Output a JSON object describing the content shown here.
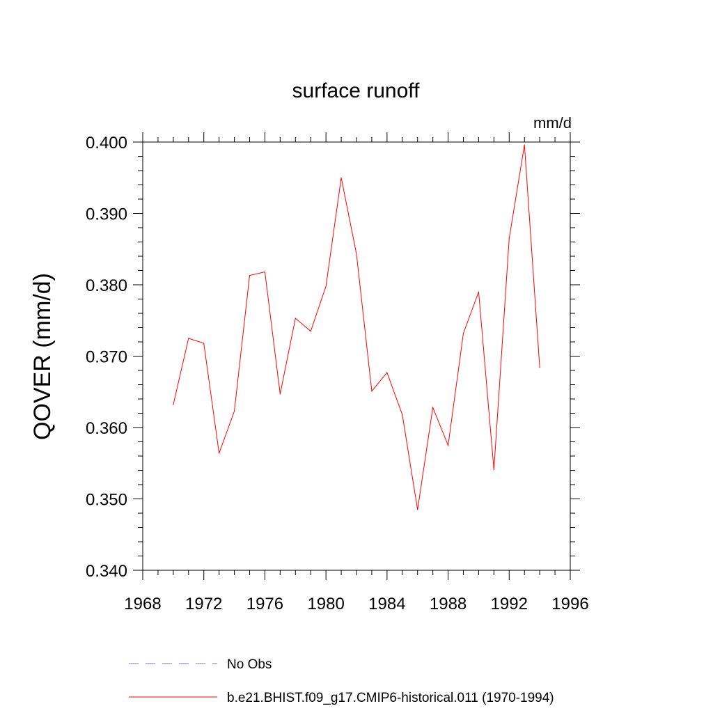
{
  "chart_data": {
    "type": "line",
    "title": "surface runoff",
    "units_label": "mm/d",
    "xlabel": "",
    "ylabel": "QOVER  (mm/d)",
    "xlim": [
      1968,
      1996
    ],
    "ylim": [
      0.34,
      0.4
    ],
    "x_ticks": [
      1968,
      1972,
      1976,
      1980,
      1984,
      1988,
      1992,
      1996
    ],
    "x_tick_labels": [
      "1968",
      "1972",
      "1976",
      "1980",
      "1984",
      "1988",
      "1992",
      "1996"
    ],
    "y_ticks": [
      0.34,
      0.35,
      0.36,
      0.37,
      0.38,
      0.39,
      0.4
    ],
    "y_tick_labels": [
      "0.340",
      "0.350",
      "0.360",
      "0.370",
      "0.380",
      "0.390",
      "0.400"
    ],
    "grid": false,
    "legend_position": "bottom",
    "series": [
      {
        "name": "No Obs",
        "color": "#7b68ee",
        "style": "dashed",
        "x": [],
        "values": []
      },
      {
        "name": "b.e21.BHIST.f09_g17.CMIP6-historical.011 (1970-1994)",
        "color": "#ff0000",
        "style": "solid",
        "x": [
          1970,
          1971,
          1972,
          1973,
          1974,
          1975,
          1976,
          1977,
          1978,
          1979,
          1980,
          1981,
          1982,
          1983,
          1984,
          1985,
          1986,
          1987,
          1988,
          1989,
          1990,
          1991,
          1992,
          1993,
          1994
        ],
        "values": [
          0.3632,
          0.3725,
          0.3718,
          0.3564,
          0.3623,
          0.3813,
          0.3818,
          0.3647,
          0.3753,
          0.3735,
          0.3798,
          0.395,
          0.3843,
          0.3651,
          0.3677,
          0.3618,
          0.3485,
          0.3628,
          0.3575,
          0.3732,
          0.379,
          0.3541,
          0.3865,
          0.3996,
          0.3684
        ]
      }
    ]
  }
}
